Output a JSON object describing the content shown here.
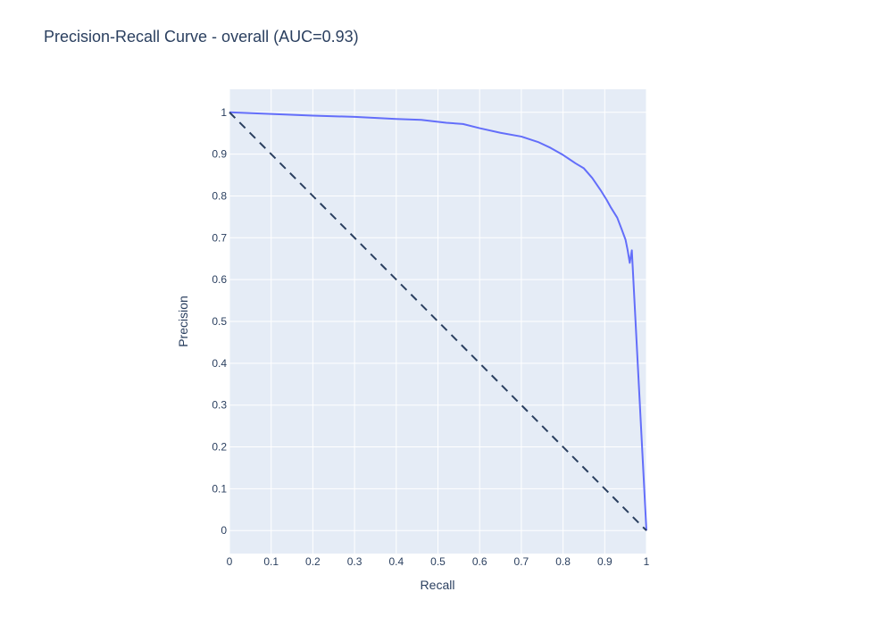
{
  "chart_data": {
    "type": "line",
    "title": "Precision-Recall Curve - overall (AUC=0.93)",
    "xlabel": "Recall",
    "ylabel": "Precision",
    "xlim": [
      0,
      1
    ],
    "ylim": [
      -0.055,
      1.055
    ],
    "x_ticks": [
      0,
      0.1,
      0.2,
      0.3,
      0.4,
      0.5,
      0.6,
      0.7,
      0.8,
      0.9,
      1
    ],
    "x_tick_labels": [
      "0",
      "0.1",
      "0.2",
      "0.3",
      "0.4",
      "0.5",
      "0.6",
      "0.7",
      "0.8",
      "0.9",
      "1"
    ],
    "y_ticks": [
      0,
      0.1,
      0.2,
      0.3,
      0.4,
      0.5,
      0.6,
      0.7,
      0.8,
      0.9,
      1
    ],
    "y_tick_labels": [
      "0",
      "0.1",
      "0.2",
      "0.3",
      "0.4",
      "0.5",
      "0.6",
      "0.7",
      "0.8",
      "0.9",
      "1"
    ],
    "grid": true,
    "colors": {
      "plot_bg": "#e5ecf6",
      "grid": "#ffffff",
      "curve": "#636efa",
      "baseline": "#2a3f5f"
    },
    "series": [
      {
        "style": "solid",
        "x": [
          0,
          0.1,
          0.2,
          0.3,
          0.4,
          0.46,
          0.52,
          0.56,
          0.6,
          0.65,
          0.7,
          0.74,
          0.77,
          0.8,
          0.83,
          0.85,
          0.87,
          0.89,
          0.905,
          0.915,
          0.93,
          0.94,
          0.95,
          0.955,
          0.96,
          0.965,
          1
        ],
        "y": [
          1,
          0.996,
          0.992,
          0.989,
          0.984,
          0.982,
          0.975,
          0.972,
          0.962,
          0.951,
          0.942,
          0.929,
          0.915,
          0.898,
          0.878,
          0.866,
          0.843,
          0.814,
          0.79,
          0.772,
          0.748,
          0.722,
          0.695,
          0.67,
          0.64,
          0.67,
          0
        ]
      },
      {
        "style": "dashed",
        "x": [
          0,
          1
        ],
        "y": [
          1,
          0
        ]
      }
    ]
  }
}
